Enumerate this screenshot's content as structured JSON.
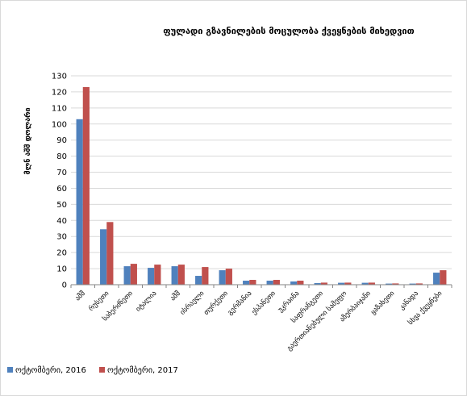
{
  "chart_data": {
    "type": "bar",
    "title": "ფულადი გზავნილების მოცულობა ქვეყნების მიხედვით",
    "ylabel": "მლნ აშშ დოლარი",
    "xlabel": "",
    "ylim": [
      0,
      130
    ],
    "yticks": [
      0,
      10,
      20,
      30,
      40,
      50,
      60,
      70,
      80,
      90,
      100,
      110,
      120,
      130
    ],
    "grid": true,
    "legend_position": "bottom-left",
    "categories": [
      "აშშ",
      "რუსეთი",
      "საბერძნეთი",
      "იტალია",
      "აშშ",
      "ისრაელი",
      "თურქეთი",
      "გერმანია",
      "ესპანეთი",
      "უკრაინა",
      "საფრანგეთი",
      "გაერთიანებული სამეფო",
      "აზერბაიჯანი",
      "ყაზახეთი",
      "კანადა",
      "სხვა ქვეყნები"
    ],
    "series": [
      {
        "name": "ოქტომბერი, 2016",
        "color": "#4f81bd",
        "values": [
          103,
          34.5,
          11.5,
          10.5,
          11.5,
          5.5,
          9,
          2.5,
          2.5,
          2,
          1,
          1.2,
          1.2,
          0.7,
          0.7,
          7.5
        ]
      },
      {
        "name": "ოქტომბერი, 2017",
        "color": "#c0504d",
        "values": [
          123,
          39,
          13,
          12.5,
          12.5,
          11,
          10,
          3,
          3,
          2.5,
          1.3,
          1.3,
          1.3,
          0.8,
          0.8,
          9
        ]
      }
    ]
  }
}
